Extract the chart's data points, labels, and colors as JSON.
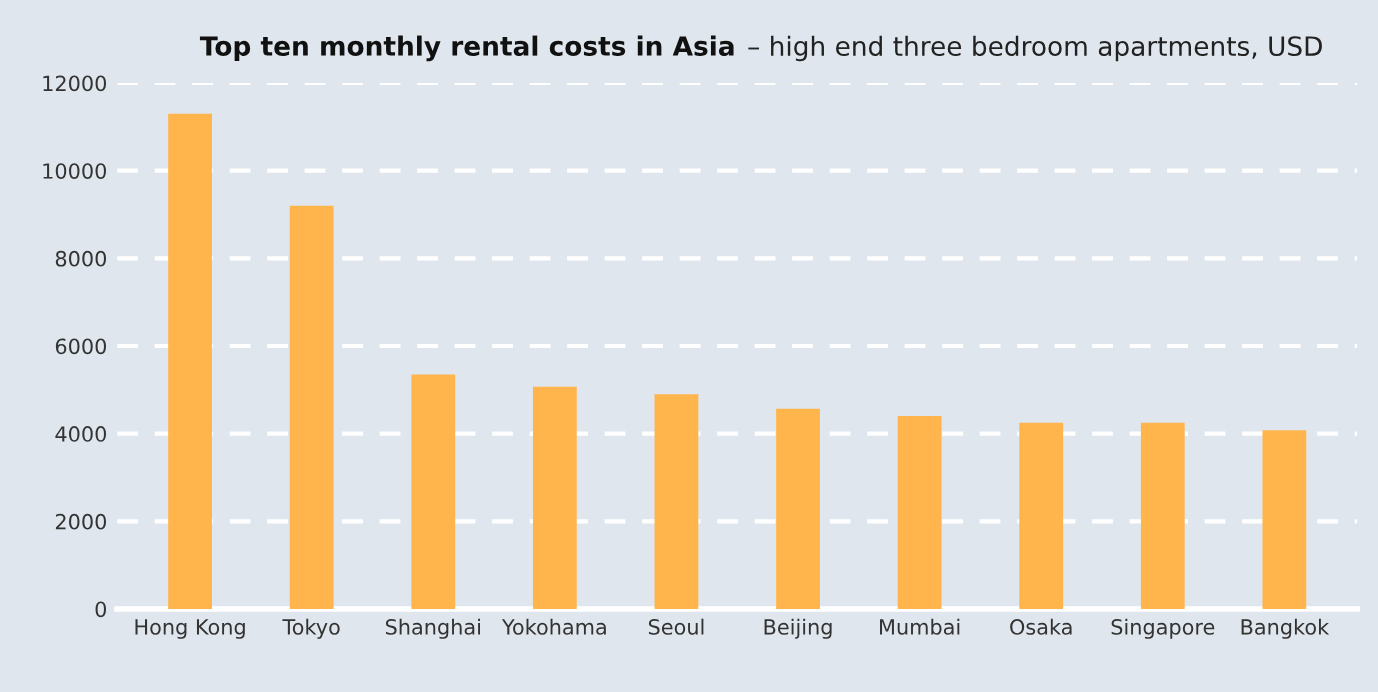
{
  "chart_data": {
    "type": "bar",
    "title": "Top ten monthly rental costs in Asia",
    "subtitle": "– high end three bedroom apartments, USD",
    "categories": [
      "Hong Kong",
      "Tokyo",
      "Shanghai",
      "Yokohama",
      "Seoul",
      "Beijing",
      "Mumbai",
      "Osaka",
      "Singapore",
      "Bangkok"
    ],
    "values": [
      11300,
      9200,
      5350,
      5070,
      4900,
      4570,
      4400,
      4250,
      4250,
      4080
    ],
    "color": "#ffb54c",
    "ylim": [
      0,
      12000
    ],
    "yticks": [
      0,
      2000,
      4000,
      6000,
      8000,
      10000,
      12000
    ],
    "grid": "y",
    "line_style": "dashed"
  }
}
